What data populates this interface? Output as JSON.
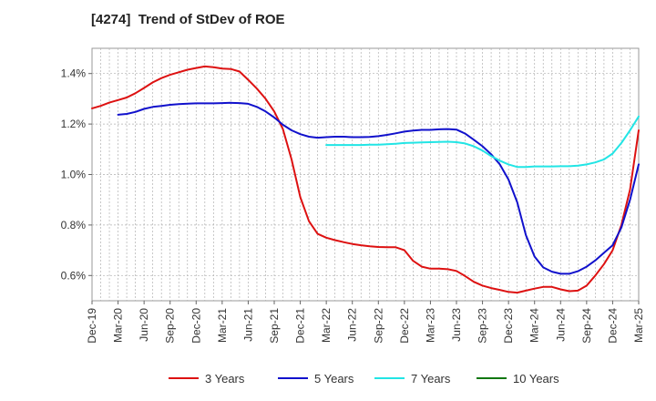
{
  "chart_data": {
    "type": "line",
    "title": "[4274]  Trend of StDev of ROE",
    "xlabel": "",
    "ylabel": "",
    "x_ticks": [
      "Dec-19",
      "Mar-20",
      "Jun-20",
      "Sep-20",
      "Dec-20",
      "Mar-21",
      "Jun-21",
      "Sep-21",
      "Dec-21",
      "Mar-22",
      "Jun-22",
      "Sep-22",
      "Dec-22",
      "Mar-23",
      "Jun-23",
      "Sep-23",
      "Dec-23",
      "Mar-24",
      "Jun-24",
      "Sep-24",
      "Dec-24",
      "Mar-25"
    ],
    "ylim": [
      0.5,
      1.5
    ],
    "y_ticks": [
      0.6,
      0.8,
      1.0,
      1.2,
      1.4
    ],
    "y_tick_labels": [
      "0.6%",
      "0.8%",
      "1.0%",
      "1.2%",
      "1.4%"
    ],
    "grid": true,
    "legend_position": "bottom",
    "series": [
      {
        "name": "3 Years",
        "color": "#dd1111",
        "points": [
          [
            "Dec-19",
            1.262
          ],
          [
            "Jan-20",
            1.272
          ],
          [
            "Feb-20",
            1.285
          ],
          [
            "Mar-20",
            1.295
          ],
          [
            "Apr-20",
            1.305
          ],
          [
            "May-20",
            1.322
          ],
          [
            "Jun-20",
            1.343
          ],
          [
            "Jul-20",
            1.365
          ],
          [
            "Aug-20",
            1.382
          ],
          [
            "Sep-20",
            1.395
          ],
          [
            "Oct-20",
            1.405
          ],
          [
            "Nov-20",
            1.415
          ],
          [
            "Dec-20",
            1.422
          ],
          [
            "Jan-21",
            1.428
          ],
          [
            "Feb-21",
            1.425
          ],
          [
            "Mar-21",
            1.42
          ],
          [
            "Apr-21",
            1.418
          ],
          [
            "May-21",
            1.408
          ],
          [
            "Jun-21",
            1.375
          ],
          [
            "Jul-21",
            1.34
          ],
          [
            "Aug-21",
            1.3
          ],
          [
            "Sep-21",
            1.25
          ],
          [
            "Oct-21",
            1.18
          ],
          [
            "Nov-21",
            1.06
          ],
          [
            "Dec-21",
            0.91
          ],
          [
            "Jan-22",
            0.815
          ],
          [
            "Feb-22",
            0.765
          ],
          [
            "Mar-22",
            0.75
          ],
          [
            "Apr-22",
            0.74
          ],
          [
            "May-22",
            0.732
          ],
          [
            "Jun-22",
            0.725
          ],
          [
            "Jul-22",
            0.72
          ],
          [
            "Aug-22",
            0.716
          ],
          [
            "Sep-22",
            0.713
          ],
          [
            "Oct-22",
            0.712
          ],
          [
            "Nov-22",
            0.712
          ],
          [
            "Dec-22",
            0.7
          ],
          [
            "Jan-23",
            0.658
          ],
          [
            "Feb-23",
            0.635
          ],
          [
            "Mar-23",
            0.627
          ],
          [
            "Apr-23",
            0.627
          ],
          [
            "May-23",
            0.625
          ],
          [
            "Jun-23",
            0.618
          ],
          [
            "Jul-23",
            0.598
          ],
          [
            "Aug-23",
            0.575
          ],
          [
            "Sep-23",
            0.56
          ],
          [
            "Oct-23",
            0.55
          ],
          [
            "Nov-23",
            0.543
          ],
          [
            "Dec-23",
            0.535
          ],
          [
            "Jan-24",
            0.532
          ],
          [
            "Feb-24",
            0.54
          ],
          [
            "Mar-24",
            0.548
          ],
          [
            "Apr-24",
            0.555
          ],
          [
            "May-24",
            0.555
          ],
          [
            "Jun-24",
            0.545
          ],
          [
            "Jul-24",
            0.538
          ],
          [
            "Aug-24",
            0.54
          ],
          [
            "Sep-24",
            0.56
          ],
          [
            "Oct-24",
            0.6
          ],
          [
            "Nov-24",
            0.645
          ],
          [
            "Dec-24",
            0.7
          ],
          [
            "Jan-25",
            0.8
          ],
          [
            "Feb-25",
            0.94
          ],
          [
            "Mar-25",
            1.175
          ]
        ]
      },
      {
        "name": "5 Years",
        "color": "#1111cc",
        "points": [
          [
            "Mar-20",
            1.237
          ],
          [
            "Apr-20",
            1.24
          ],
          [
            "May-20",
            1.248
          ],
          [
            "Jun-20",
            1.26
          ],
          [
            "Jul-20",
            1.268
          ],
          [
            "Aug-20",
            1.272
          ],
          [
            "Sep-20",
            1.276
          ],
          [
            "Oct-20",
            1.279
          ],
          [
            "Nov-20",
            1.281
          ],
          [
            "Dec-20",
            1.282
          ],
          [
            "Jan-21",
            1.282
          ],
          [
            "Feb-21",
            1.282
          ],
          [
            "Mar-21",
            1.283
          ],
          [
            "Apr-21",
            1.284
          ],
          [
            "May-21",
            1.283
          ],
          [
            "Jun-21",
            1.28
          ],
          [
            "Jul-21",
            1.268
          ],
          [
            "Aug-21",
            1.25
          ],
          [
            "Sep-21",
            1.226
          ],
          [
            "Oct-21",
            1.197
          ],
          [
            "Nov-21",
            1.175
          ],
          [
            "Dec-21",
            1.16
          ],
          [
            "Jan-22",
            1.15
          ],
          [
            "Feb-22",
            1.146
          ],
          [
            "Mar-22",
            1.148
          ],
          [
            "Apr-22",
            1.15
          ],
          [
            "May-22",
            1.15
          ],
          [
            "Jun-22",
            1.148
          ],
          [
            "Jul-22",
            1.148
          ],
          [
            "Aug-22",
            1.149
          ],
          [
            "Sep-22",
            1.152
          ],
          [
            "Oct-22",
            1.157
          ],
          [
            "Nov-22",
            1.163
          ],
          [
            "Dec-22",
            1.17
          ],
          [
            "Jan-23",
            1.174
          ],
          [
            "Feb-23",
            1.177
          ],
          [
            "Mar-23",
            1.177
          ],
          [
            "Apr-23",
            1.179
          ],
          [
            "May-23",
            1.18
          ],
          [
            "Jun-23",
            1.178
          ],
          [
            "Jul-23",
            1.162
          ],
          [
            "Aug-23",
            1.138
          ],
          [
            "Sep-23",
            1.112
          ],
          [
            "Oct-23",
            1.08
          ],
          [
            "Nov-23",
            1.04
          ],
          [
            "Dec-23",
            0.98
          ],
          [
            "Jan-24",
            0.89
          ],
          [
            "Feb-24",
            0.76
          ],
          [
            "Mar-24",
            0.675
          ],
          [
            "Apr-24",
            0.632
          ],
          [
            "May-24",
            0.615
          ],
          [
            "Jun-24",
            0.607
          ],
          [
            "Jul-24",
            0.607
          ],
          [
            "Aug-24",
            0.617
          ],
          [
            "Sep-24",
            0.635
          ],
          [
            "Oct-24",
            0.66
          ],
          [
            "Nov-24",
            0.69
          ],
          [
            "Dec-24",
            0.72
          ],
          [
            "Jan-25",
            0.79
          ],
          [
            "Feb-25",
            0.9
          ],
          [
            "Mar-25",
            1.04
          ]
        ]
      },
      {
        "name": "7 Years",
        "color": "#22e5e5",
        "points": [
          [
            "Mar-22",
            1.117
          ],
          [
            "Apr-22",
            1.117
          ],
          [
            "May-22",
            1.117
          ],
          [
            "Jun-22",
            1.117
          ],
          [
            "Jul-22",
            1.117
          ],
          [
            "Aug-22",
            1.118
          ],
          [
            "Sep-22",
            1.118
          ],
          [
            "Oct-22",
            1.12
          ],
          [
            "Nov-22",
            1.122
          ],
          [
            "Dec-22",
            1.125
          ],
          [
            "Jan-23",
            1.126
          ],
          [
            "Feb-23",
            1.127
          ],
          [
            "Mar-23",
            1.128
          ],
          [
            "Apr-23",
            1.129
          ],
          [
            "May-23",
            1.13
          ],
          [
            "Jun-23",
            1.128
          ],
          [
            "Jul-23",
            1.123
          ],
          [
            "Aug-23",
            1.112
          ],
          [
            "Sep-23",
            1.095
          ],
          [
            "Oct-23",
            1.073
          ],
          [
            "Nov-23",
            1.055
          ],
          [
            "Dec-23",
            1.04
          ],
          [
            "Jan-24",
            1.03
          ],
          [
            "Feb-24",
            1.03
          ],
          [
            "Mar-24",
            1.032
          ],
          [
            "Apr-24",
            1.032
          ],
          [
            "May-24",
            1.032
          ],
          [
            "Jun-24",
            1.033
          ],
          [
            "Jul-24",
            1.033
          ],
          [
            "Aug-24",
            1.035
          ],
          [
            "Sep-24",
            1.04
          ],
          [
            "Oct-24",
            1.048
          ],
          [
            "Nov-24",
            1.06
          ],
          [
            "Dec-24",
            1.083
          ],
          [
            "Jan-25",
            1.125
          ],
          [
            "Feb-25",
            1.175
          ],
          [
            "Mar-25",
            1.23
          ]
        ]
      },
      {
        "name": "10 Years",
        "color": "#117711",
        "points": []
      }
    ]
  }
}
